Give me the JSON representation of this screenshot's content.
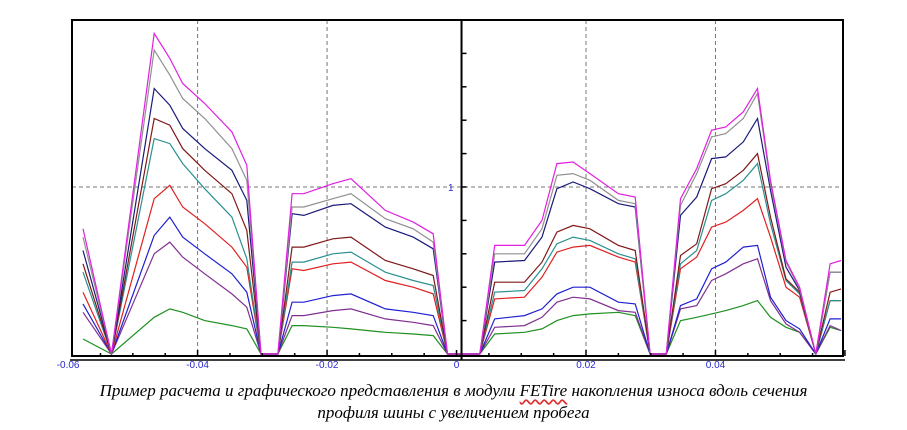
{
  "chart_data": {
    "type": "line",
    "title": "",
    "xlabel": "",
    "ylabel": "",
    "xlim": [
      -0.0594,
      0.0597
    ],
    "ylim": [
      0,
      2
    ],
    "grid": {
      "x": [
        -0.04,
        -0.02,
        0.02,
        0.04
      ],
      "y": [
        1
      ]
    },
    "x_tick_labels": [
      "-0.06",
      "-0.04",
      "-0.02",
      "0",
      "0.02",
      "0.04"
    ],
    "x_tick_values": [
      -0.06,
      -0.04,
      -0.02,
      0,
      0.02,
      0.04
    ],
    "y_tick_labels": [
      "1"
    ],
    "y_tick_values": [
      1
    ],
    "x": [
      -0.0577,
      -0.0533,
      -0.0467,
      -0.0443,
      -0.0423,
      -0.0389,
      -0.0347,
      -0.0324,
      -0.0302,
      -0.0276,
      -0.0254,
      -0.0236,
      -0.0191,
      -0.0163,
      -0.011,
      -0.0067,
      -0.0036,
      -0.0014,
      0.0036,
      0.0059,
      0.0105,
      0.0132,
      0.0155,
      0.018,
      0.0206,
      0.025,
      0.0276,
      0.0299,
      0.0324,
      0.0346,
      0.0371,
      0.0394,
      0.0416,
      0.0443,
      0.0465,
      0.0485,
      0.0509,
      0.053,
      0.0555,
      0.0577,
      0.0594
    ],
    "series": [
      {
        "name": "green",
        "color": "#209020",
        "values": [
          0.09,
          0,
          0.22,
          0.27,
          0.25,
          0.2,
          0.17,
          0.15,
          0,
          0,
          0.17,
          0.17,
          0.16,
          0.15,
          0.13,
          0.12,
          0.11,
          0,
          0,
          0.12,
          0.13,
          0.15,
          0.2,
          0.23,
          0.24,
          0.25,
          0.23,
          0,
          0,
          0.2,
          0.22,
          0.24,
          0.26,
          0.29,
          0.32,
          0.22,
          0.16,
          0.13,
          0,
          0.16,
          0.14
        ]
      },
      {
        "name": "purple",
        "color": "#803090",
        "values": [
          0.25,
          0,
          0.6,
          0.67,
          0.58,
          0.48,
          0.36,
          0.28,
          0,
          0,
          0.23,
          0.23,
          0.26,
          0.27,
          0.21,
          0.19,
          0.17,
          0,
          0,
          0.16,
          0.17,
          0.22,
          0.31,
          0.34,
          0.33,
          0.26,
          0.25,
          0,
          0,
          0.27,
          0.29,
          0.44,
          0.48,
          0.54,
          0.57,
          0.32,
          0.18,
          0.13,
          0,
          0.17,
          0.14
        ]
      },
      {
        "name": "blue",
        "color": "#2020d0",
        "values": [
          0.3,
          0,
          0.71,
          0.82,
          0.7,
          0.6,
          0.48,
          0.37,
          0,
          0,
          0.31,
          0.31,
          0.35,
          0.36,
          0.27,
          0.25,
          0.23,
          0,
          0,
          0.21,
          0.23,
          0.27,
          0.36,
          0.4,
          0.4,
          0.31,
          0.3,
          0,
          0,
          0.29,
          0.33,
          0.51,
          0.55,
          0.64,
          0.65,
          0.34,
          0.2,
          0.15,
          0,
          0.21,
          0.21
        ]
      },
      {
        "name": "red",
        "color": "#e02020",
        "values": [
          0.37,
          0,
          0.93,
          1.01,
          0.88,
          0.78,
          0.64,
          0.52,
          0,
          0,
          0.51,
          0.5,
          0.54,
          0.55,
          0.44,
          0.4,
          0.36,
          0,
          0,
          0.33,
          0.34,
          0.46,
          0.61,
          0.64,
          0.65,
          0.58,
          0.55,
          0,
          0,
          0.51,
          0.58,
          0.76,
          0.79,
          0.86,
          0.93,
          0.7,
          0.4,
          0.34,
          0,
          0.32,
          0.32
        ]
      },
      {
        "name": "teal",
        "color": "#2a9090",
        "values": [
          0.49,
          0,
          1.29,
          1.26,
          1.14,
          0.99,
          0.82,
          0.57,
          0,
          0,
          0.55,
          0.55,
          0.6,
          0.61,
          0.49,
          0.44,
          0.41,
          0,
          0,
          0.37,
          0.38,
          0.51,
          0.66,
          0.7,
          0.68,
          0.6,
          0.57,
          0,
          0,
          0.54,
          0.62,
          0.92,
          0.96,
          1.04,
          1.14,
          0.78,
          0.44,
          0.36,
          0,
          0.32,
          0.32
        ]
      },
      {
        "name": "dark-red",
        "color": "#801818",
        "values": [
          0.54,
          0,
          1.41,
          1.37,
          1.23,
          1.1,
          0.96,
          0.74,
          0,
          0,
          0.64,
          0.64,
          0.69,
          0.7,
          0.56,
          0.51,
          0.47,
          0,
          0,
          0.43,
          0.43,
          0.55,
          0.73,
          0.77,
          0.75,
          0.65,
          0.62,
          0,
          0,
          0.59,
          0.66,
          0.99,
          1.02,
          1.1,
          1.2,
          0.82,
          0.45,
          0.37,
          0,
          0.37,
          0.39
        ]
      },
      {
        "name": "navy",
        "color": "#1a1a7a",
        "values": [
          0.62,
          0,
          1.59,
          1.49,
          1.35,
          1.23,
          1.1,
          0.92,
          0,
          0,
          0.84,
          0.83,
          0.89,
          0.9,
          0.76,
          0.7,
          0.63,
          0,
          0,
          0.55,
          0.56,
          0.7,
          0.99,
          1.03,
          0.99,
          0.9,
          0.88,
          0,
          0,
          0.83,
          0.94,
          1.17,
          1.18,
          1.27,
          1.41,
          0.98,
          0.52,
          0.38,
          0,
          0.49,
          0.49
        ]
      },
      {
        "name": "gray",
        "color": "#909090",
        "values": [
          0.7,
          0,
          1.82,
          1.67,
          1.53,
          1.41,
          1.23,
          1.04,
          0,
          0,
          0.88,
          0.88,
          0.93,
          0.96,
          0.81,
          0.75,
          0.67,
          0,
          0,
          0.6,
          0.6,
          0.75,
          1.07,
          1.08,
          1.04,
          0.92,
          0.9,
          0,
          0,
          0.89,
          1.08,
          1.3,
          1.32,
          1.41,
          1.56,
          1.02,
          0.55,
          0.39,
          0,
          0.49,
          0.49
        ]
      },
      {
        "name": "magenta",
        "color": "#e020e0",
        "values": [
          0.75,
          0,
          1.92,
          1.77,
          1.62,
          1.5,
          1.33,
          1.13,
          0,
          0,
          0.96,
          0.96,
          1.02,
          1.05,
          0.86,
          0.79,
          0.72,
          0,
          0,
          0.65,
          0.65,
          0.8,
          1.14,
          1.15,
          1.08,
          0.96,
          0.94,
          0,
          0,
          0.93,
          1.11,
          1.34,
          1.36,
          1.45,
          1.59,
          1.04,
          0.56,
          0.4,
          0,
          0.54,
          0.56
        ]
      }
    ]
  },
  "caption": {
    "line1_before": "Пример расчета и графического представления в модули ",
    "brand": "FETire",
    "line1_after": " накопления износа вдоль сечения",
    "line2": "профиля шины с увеличением пробега"
  }
}
